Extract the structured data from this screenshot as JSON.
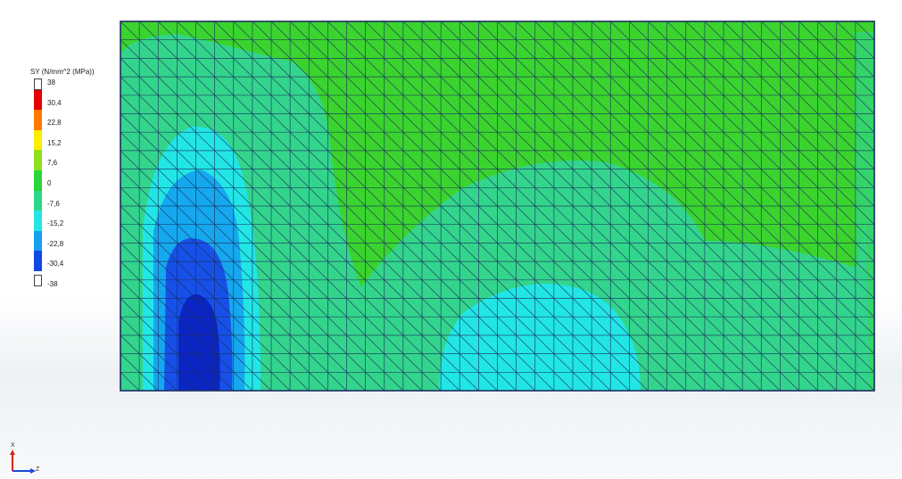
{
  "legend": {
    "title": "SY (N/mm^2 (MPa))",
    "levels": [
      {
        "label": "38",
        "color": "#ffffff",
        "cap": true
      },
      {
        "label": "30,4",
        "color": "#e60000"
      },
      {
        "label": "22,8",
        "color": "#ff7a00"
      },
      {
        "label": "15,2",
        "color": "#ffee00"
      },
      {
        "label": "7,6",
        "color": "#8ee01c"
      },
      {
        "label": "0",
        "color": "#2ad43c"
      },
      {
        "label": "-7,6",
        "color": "#2ad98a"
      },
      {
        "label": "-15,2",
        "color": "#24e6e6"
      },
      {
        "label": "-22,8",
        "color": "#1aa0f0"
      },
      {
        "label": "-30,4",
        "color": "#1048e6"
      },
      {
        "label": "-38",
        "color": "#ffffff",
        "cap": true
      }
    ]
  },
  "fringe_colors": {
    "band_pos_low": "#3bd42f",
    "band_zero": "#33d48c",
    "band_neg_15": "#22e6e6",
    "band_neg_23": "#16a8ee",
    "band_neg_30": "#1650e6",
    "band_neg_38": "#0b24c4",
    "mesh": "#1a2e60"
  },
  "triad": {
    "x_label": "X",
    "z_label": "Z",
    "x_color": "#d1251c",
    "z_color": "#1c4ad1"
  }
}
